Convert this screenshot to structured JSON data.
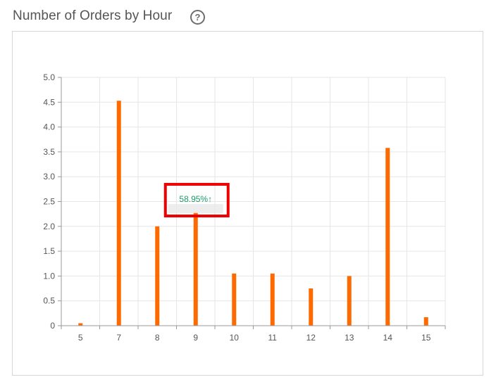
{
  "header": {
    "title": "Number of Orders by Hour",
    "help_icon": "question-circle-icon",
    "help_glyph": "?"
  },
  "chart_data": {
    "type": "bar",
    "categories": [
      "5",
      "7",
      "8",
      "9",
      "10",
      "11",
      "12",
      "13",
      "14",
      "15"
    ],
    "values": [
      0.05,
      4.53,
      2.0,
      2.28,
      1.05,
      1.05,
      0.75,
      1.0,
      3.58,
      0.17
    ],
    "ylim": [
      0,
      5
    ],
    "yticks": [
      "0",
      "0.5",
      "1.0",
      "1.5",
      "2.0",
      "2.5",
      "3.0",
      "3.5",
      "4.0",
      "4.5",
      "5.0"
    ],
    "grid": true,
    "bar_color": "#ff6a00",
    "annotation": {
      "category": "9",
      "text": "58.95%↑",
      "text_color": "#1a9a6a",
      "highlight_color": "#ee0000"
    }
  }
}
